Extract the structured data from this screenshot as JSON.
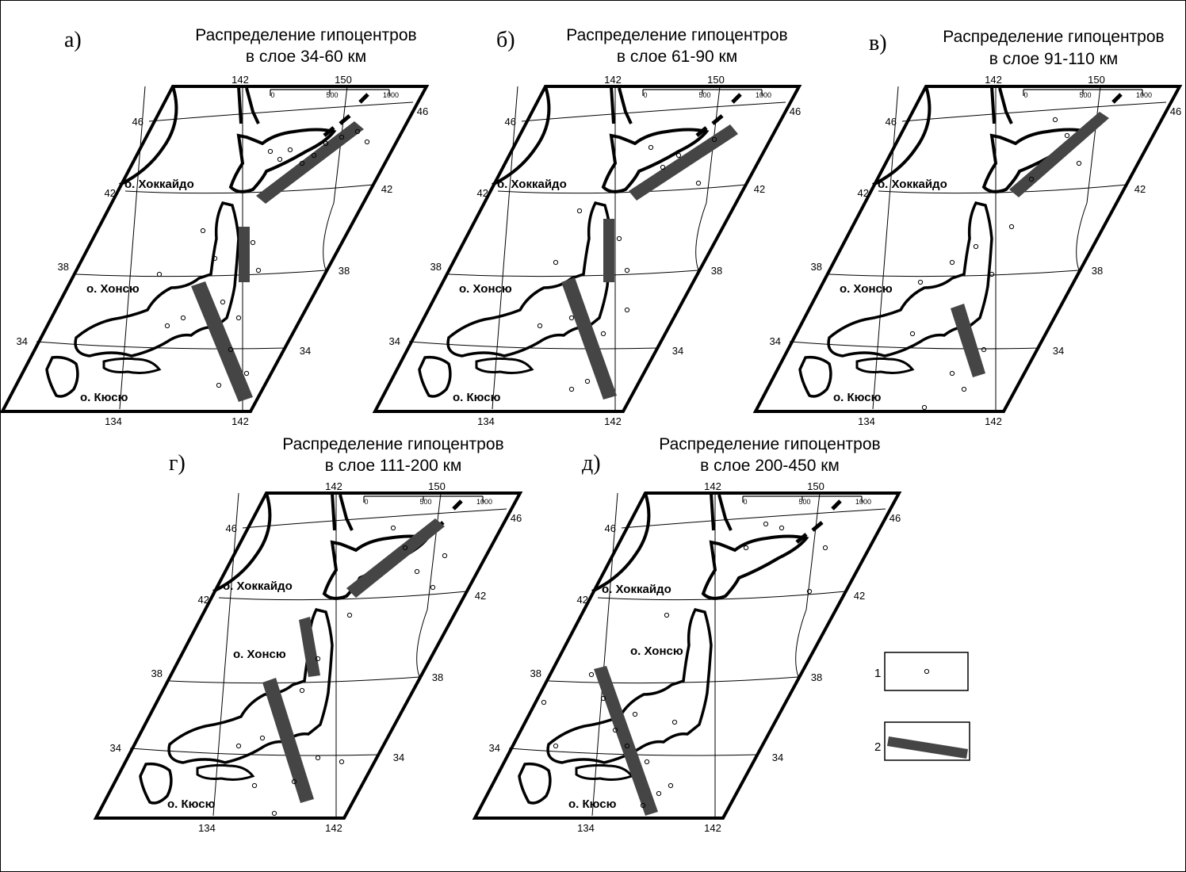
{
  "panels": [
    {
      "letter": "а)",
      "title_line1": "Распределение гипоцентров",
      "title_line2": "в слое 34-60 км"
    },
    {
      "letter": "б)",
      "title_line1": "Распределение гипоцентров",
      "title_line2": "в слое 61-90 км"
    },
    {
      "letter": "в)",
      "title_line1": "Распределение гипоцентров",
      "title_line2": "в слое 91-110 км"
    },
    {
      "letter": "г)",
      "title_line1": "Распределение гипоцентров",
      "title_line2": "в слое 111-200 км"
    },
    {
      "letter": "д)",
      "title_line1": "Распределение гипоцентров",
      "title_line2": "в слое 200-450 км"
    }
  ],
  "map": {
    "lon_top": [
      "142",
      "150"
    ],
    "lon_bottom": [
      "134",
      "142"
    ],
    "lat_left": [
      "46",
      "42",
      "38",
      "34"
    ],
    "lat_right": [
      "46",
      "42",
      "38",
      "34"
    ],
    "scale_labels": [
      "0",
      "500",
      "1000"
    ],
    "islands": {
      "hokkaido": "о. Хоккайдо",
      "honshu": "о. Хонсю",
      "kyushu": "о. Кюсю"
    },
    "line_color": "#000000",
    "band_color": "#454545"
  },
  "legend": {
    "item1": "1",
    "item2": "2"
  }
}
